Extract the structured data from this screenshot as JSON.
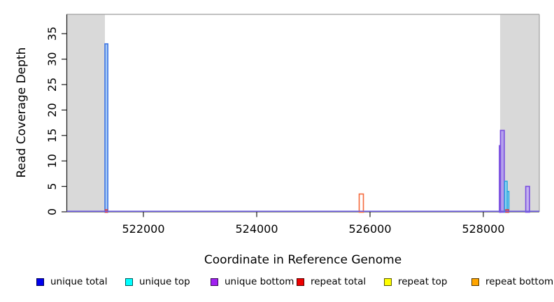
{
  "chart_data": {
    "type": "bar",
    "title": "",
    "xlabel": "Coordinate in Reference Genome",
    "ylabel": "Read Coverage Depth",
    "xlim": [
      520648,
      528988
    ],
    "ylim": [
      0,
      38.8
    ],
    "x_ticks": [
      522000,
      524000,
      526000,
      528000
    ],
    "y_ticks": [
      0,
      5,
      10,
      15,
      20,
      25,
      30,
      35
    ],
    "grid": false,
    "legend_position": "bottom",
    "background_color": "#ffffff",
    "shaded_region_color": "#d9d9d9",
    "border_color": "#ababab",
    "axis_color": "#1a1a1a",
    "baseline_color": "#6f5fe0",
    "shaded_regions": [
      {
        "name": "masked-left",
        "from": 520648,
        "to": 521321
      },
      {
        "name": "masked-right",
        "from": 528296,
        "to": 528988
      }
    ],
    "bars": [
      {
        "series": "unique-total",
        "from": 521321,
        "to": 521372,
        "height": 33,
        "stroke": "#3e74e3",
        "fill": "#a8ccf5"
      },
      {
        "series": "repeat-total",
        "from": 521330,
        "to": 521362,
        "height": 0.4,
        "stroke": "#e23b3b",
        "fill": "#f08080"
      },
      {
        "series": "repeat-bottom",
        "from": 525809,
        "to": 525883,
        "height": 3.5,
        "stroke": "#f56a3c",
        "fill": "#ffffff"
      },
      {
        "series": "unique-bottom",
        "from": 528283,
        "to": 528302,
        "height": 13,
        "stroke": "#7a4fe0",
        "fill": "#b4a0ec"
      },
      {
        "series": "unique-bottom",
        "from": 528302,
        "to": 528370,
        "height": 16,
        "stroke": "#7a4fe0",
        "fill": "#b4a0ec"
      },
      {
        "series": "unique-top",
        "from": 528377,
        "to": 528420,
        "height": 6,
        "stroke": "#27a7e0",
        "fill": "#aadcf2"
      },
      {
        "series": "unique-top",
        "from": 528420,
        "to": 528451,
        "height": 4,
        "stroke": "#27a7e0",
        "fill": "#aadcf2"
      },
      {
        "series": "repeat-total",
        "from": 528395,
        "to": 528446,
        "height": 0.4,
        "stroke": "#e23b3b",
        "fill": "#f08080"
      },
      {
        "series": "unique-bottom",
        "from": 528748,
        "to": 528815,
        "height": 5,
        "stroke": "#7a4fe0",
        "fill": "#c3b2ef"
      }
    ],
    "legend": [
      {
        "label": "unique total",
        "color": "#0000ee"
      },
      {
        "label": "unique top",
        "color": "#00ffff"
      },
      {
        "label": "unique bottom",
        "color": "#a020f0"
      },
      {
        "label": "repeat total",
        "color": "#ee0000"
      },
      {
        "label": "repeat top",
        "color": "#ffff00"
      },
      {
        "label": "repeat bottom",
        "color": "#ffa500"
      }
    ]
  }
}
